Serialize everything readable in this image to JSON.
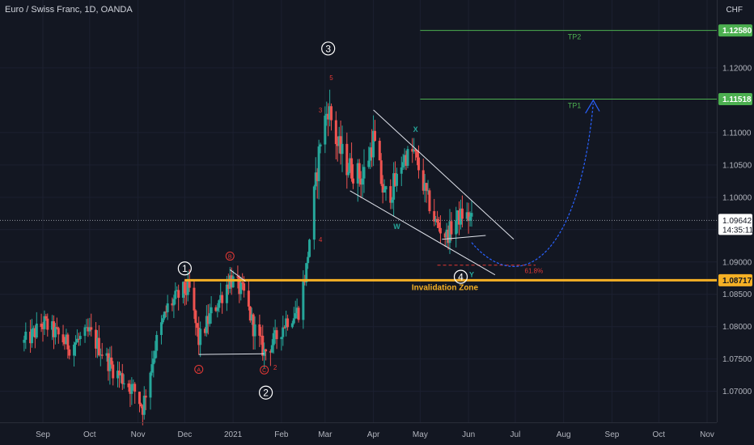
{
  "header": {
    "title": "Euro / Swiss Franc, 1D, OANDA",
    "currency": "CHF"
  },
  "colors": {
    "background": "#131722",
    "up": "#26a69a",
    "down": "#ef5350",
    "target_line": "#4caf50",
    "invalidation": "#f5b025",
    "projection": "#2962ff",
    "wave_label": "#ffffff",
    "abc_label": "#e53935",
    "wxy_label": "#26a69a"
  },
  "chart_data": {
    "type": "candlestick",
    "title": "Euro / Swiss Franc, 1D, OANDA",
    "ylim": [
      1.0652,
      1.1305
    ],
    "y_ticks": [
      "1.07000",
      "1.07500",
      "1.08000",
      "1.08500",
      "1.09000",
      "1.09500",
      "1.10000",
      "1.10500",
      "1.11000",
      "1.12000"
    ],
    "x_ticks": [
      "Sep",
      "Oct",
      "Nov",
      "Dec",
      "2021",
      "Feb",
      "Mar",
      "Apr",
      "May",
      "Jun",
      "Jul",
      "Aug",
      "Sep",
      "Oct",
      "Nov"
    ],
    "price_path": [
      [
        "2020-08-20",
        1.0775
      ],
      [
        "2020-09-02",
        1.0805
      ],
      [
        "2020-09-18",
        1.077
      ],
      [
        "2020-10-01",
        1.079
      ],
      [
        "2020-10-16",
        1.0735
      ],
      [
        "2020-10-30",
        1.07
      ],
      [
        "2020-11-04",
        1.0675
      ],
      [
        "2020-11-12",
        1.077
      ],
      [
        "2020-11-20",
        1.083
      ],
      [
        "2020-11-30",
        1.0855
      ],
      [
        "2020-12-04",
        1.0855
      ],
      [
        "2020-12-10",
        1.0778
      ],
      [
        "2020-12-18",
        1.082
      ],
      [
        "2020-12-24",
        1.0845
      ],
      [
        "2020-12-30",
        1.0875
      ],
      [
        "2021-01-08",
        1.085
      ],
      [
        "2021-01-14",
        1.08
      ],
      [
        "2021-01-21",
        1.076
      ],
      [
        "2021-01-28",
        1.078
      ],
      [
        "2021-02-04",
        1.081
      ],
      [
        "2021-02-12",
        1.0825
      ],
      [
        "2021-02-17",
        1.089
      ],
      [
        "2021-02-20",
        1.096
      ],
      [
        "2021-02-23",
        1.102
      ],
      [
        "2021-02-26",
        1.109
      ],
      [
        "2021-03-03",
        1.114
      ],
      [
        "2021-03-09",
        1.108
      ],
      [
        "2021-03-15",
        1.105
      ],
      [
        "2021-03-25",
        1.103
      ],
      [
        "2021-04-01",
        1.109
      ],
      [
        "2021-04-08",
        1.1
      ],
      [
        "2021-04-15",
        1.102
      ],
      [
        "2021-04-20",
        1.106
      ],
      [
        "2021-04-27",
        1.107
      ],
      [
        "2021-05-04",
        1.101
      ],
      [
        "2021-05-11",
        1.096
      ],
      [
        "2021-05-18",
        1.094
      ],
      [
        "2021-05-24",
        1.0965
      ],
      [
        "2021-05-29",
        1.0975
      ],
      [
        "2021-06-03",
        1.0964
      ]
    ],
    "last_price": "1.09642",
    "countdown": "14:35:11",
    "levels": [
      {
        "name": "TP2",
        "label": "TP2",
        "value": 1.1258,
        "badge": "1.12580",
        "from": "2021-05-01"
      },
      {
        "name": "TP1",
        "label": "TP1",
        "value": 1.11518,
        "badge": "1.11518",
        "from": "2021-05-01"
      },
      {
        "name": "Invalidation Zone",
        "label": "Invalidation Zone",
        "value": 1.08717,
        "badge": "1.08717",
        "from": "2020-12-01"
      }
    ],
    "fib": {
      "label": "61.8%",
      "value": 1.0895
    },
    "wave_labels": [
      {
        "text": "1",
        "date": "2020-12-01",
        "price": 1.089,
        "style": "circle"
      },
      {
        "text": "2",
        "date": "2021-01-22",
        "price": 1.0698,
        "style": "circle"
      },
      {
        "text": "3",
        "date": "2021-03-03",
        "price": 1.123,
        "style": "circle"
      },
      {
        "text": "4",
        "date": "2021-05-27",
        "price": 1.0877,
        "style": "circle"
      },
      {
        "text": "A",
        "date": "2020-12-10",
        "price": 1.0734,
        "style": "small-circle"
      },
      {
        "text": "B",
        "date": "2020-12-30",
        "price": 1.0909,
        "style": "small-circle"
      },
      {
        "text": "C",
        "date": "2021-01-21",
        "price": 1.0733,
        "style": "small-circle"
      },
      {
        "text": "5",
        "date": "2021-03-05",
        "price": 1.1185,
        "style": "sub"
      },
      {
        "text": "3",
        "date": "2021-02-26",
        "price": 1.1135,
        "style": "sub"
      },
      {
        "text": "4",
        "date": "2021-02-26",
        "price": 1.0935,
        "style": "sub"
      },
      {
        "text": "2",
        "date": "2021-01-28",
        "price": 1.0737,
        "style": "sub"
      },
      {
        "text": "X",
        "date": "2021-04-28",
        "price": 1.1105,
        "style": "wxy"
      },
      {
        "text": "W",
        "date": "2021-04-16",
        "price": 1.0955,
        "style": "wxy"
      },
      {
        "text": "Y",
        "date": "2021-06-03",
        "price": 1.088,
        "style": "wxy"
      }
    ]
  }
}
